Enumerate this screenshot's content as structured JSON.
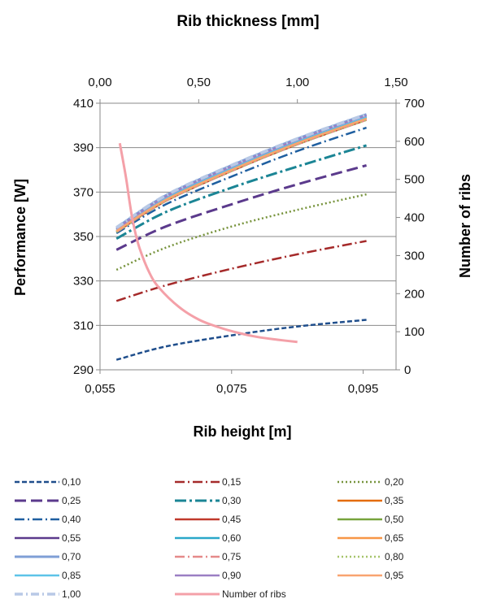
{
  "chart_data": {
    "type": "line",
    "title": "Rib thickness [mm]",
    "xlabel": "Rib height  [m]",
    "ylabel": "Performance  [W]",
    "y2label": "Number of ribs",
    "x_range": [
      0.055,
      0.1
    ],
    "x_ticks": [
      "0,055",
      "0,075",
      "0,095"
    ],
    "x_tick_values": [
      0.055,
      0.075,
      0.095
    ],
    "x2_range": [
      0.0,
      1.5
    ],
    "x2_ticks": [
      "0,00",
      "0,50",
      "1,00",
      "1,50"
    ],
    "x2_tick_values": [
      0.0,
      0.5,
      1.0,
      1.5
    ],
    "y_range": [
      290,
      410
    ],
    "y_ticks": [
      "290",
      "310",
      "330",
      "350",
      "370",
      "390",
      "410"
    ],
    "y_tick_values": [
      290,
      310,
      330,
      350,
      370,
      390,
      410
    ],
    "y2_range": [
      0,
      700
    ],
    "y2_ticks": [
      "0",
      "100",
      "200",
      "300",
      "400",
      "500",
      "600",
      "700"
    ],
    "y2_tick_values": [
      0,
      100,
      200,
      300,
      400,
      500,
      600,
      700
    ],
    "grid": "horizontal",
    "legend_position": "bottom",
    "series": [
      {
        "name": "0,10",
        "color": "#1f4e8c",
        "dash": "6,3",
        "width": 2.5,
        "axis": "left",
        "points": [
          [
            0.0575,
            294.5
          ],
          [
            0.065,
            300.5
          ],
          [
            0.075,
            305.5
          ],
          [
            0.085,
            309.5
          ],
          [
            0.0955,
            312.5
          ]
        ]
      },
      {
        "name": "0,15",
        "color": "#a52a2a",
        "dash": "12,4,2,4",
        "width": 2.5,
        "axis": "left",
        "points": [
          [
            0.0575,
            321.0
          ],
          [
            0.065,
            328.0
          ],
          [
            0.075,
            335.5
          ],
          [
            0.085,
            342.0
          ],
          [
            0.0955,
            348.0
          ]
        ]
      },
      {
        "name": "0,20",
        "color": "#77933c",
        "dash": "2,3",
        "width": 2.5,
        "axis": "left",
        "points": [
          [
            0.0575,
            335.0
          ],
          [
            0.065,
            345.0
          ],
          [
            0.075,
            354.5
          ],
          [
            0.085,
            362.0
          ],
          [
            0.0955,
            369.0
          ]
        ]
      },
      {
        "name": "0,25",
        "color": "#5b3a8c",
        "dash": "14,6",
        "width": 3,
        "axis": "left",
        "points": [
          [
            0.0575,
            344.0
          ],
          [
            0.065,
            354.5
          ],
          [
            0.075,
            364.5
          ],
          [
            0.085,
            373.5
          ],
          [
            0.0955,
            382.0
          ]
        ]
      },
      {
        "name": "0,30",
        "color": "#1b8595",
        "dash": "14,4,3,4",
        "width": 3,
        "axis": "left",
        "points": [
          [
            0.0575,
            349.0
          ],
          [
            0.065,
            361.0
          ],
          [
            0.075,
            372.0
          ],
          [
            0.085,
            381.5
          ],
          [
            0.0955,
            391.0
          ]
        ]
      },
      {
        "name": "0,35",
        "color": "#e46c0a",
        "dash": "",
        "width": 2.5,
        "axis": "left",
        "points": [
          [
            0.0575,
            352.0
          ],
          [
            0.065,
            366.5
          ],
          [
            0.075,
            380.0
          ],
          [
            0.085,
            392.0
          ],
          [
            0.0955,
            403.0
          ]
        ]
      },
      {
        "name": "0,40",
        "color": "#1f5fa0",
        "dash": "12,4,2,4",
        "width": 2.5,
        "axis": "left",
        "points": [
          [
            0.0575,
            351.5
          ],
          [
            0.065,
            364.5
          ],
          [
            0.075,
            377.0
          ],
          [
            0.085,
            388.5
          ],
          [
            0.0955,
            399.0
          ]
        ]
      },
      {
        "name": "0,45",
        "color": "#c0392b",
        "dash": "",
        "width": 2.5,
        "axis": "left",
        "points": [
          [
            0.0575,
            352.0
          ],
          [
            0.065,
            366.0
          ],
          [
            0.075,
            379.5
          ],
          [
            0.085,
            391.5
          ],
          [
            0.0955,
            402.5
          ]
        ]
      },
      {
        "name": "0,50",
        "color": "#77a33c",
        "dash": "",
        "width": 2.5,
        "axis": "left",
        "points": [
          [
            0.0575,
            352.5
          ],
          [
            0.065,
            367.0
          ],
          [
            0.075,
            380.5
          ],
          [
            0.085,
            392.5
          ],
          [
            0.0955,
            403.5
          ]
        ]
      },
      {
        "name": "0,55",
        "color": "#5b3a8c",
        "dash": "",
        "width": 2.5,
        "axis": "left",
        "points": [
          [
            0.0575,
            353.0
          ],
          [
            0.065,
            367.5
          ],
          [
            0.075,
            381.0
          ],
          [
            0.085,
            393.0
          ],
          [
            0.0955,
            404.0
          ]
        ]
      },
      {
        "name": "0,60",
        "color": "#2aa7c9",
        "dash": "",
        "width": 2.5,
        "axis": "left",
        "points": [
          [
            0.0575,
            353.5
          ],
          [
            0.065,
            368.0
          ],
          [
            0.075,
            381.5
          ],
          [
            0.085,
            393.5
          ],
          [
            0.0955,
            404.5
          ]
        ]
      },
      {
        "name": "0,65",
        "color": "#f79646",
        "dash": "",
        "width": 2.5,
        "axis": "left",
        "points": [
          [
            0.0575,
            352.5
          ],
          [
            0.065,
            366.5
          ],
          [
            0.075,
            380.0
          ],
          [
            0.085,
            392.0
          ],
          [
            0.0955,
            403.0
          ]
        ]
      },
      {
        "name": "0,70",
        "color": "#7f9fd6",
        "dash": "",
        "width": 3,
        "axis": "left",
        "points": [
          [
            0.0575,
            354.0
          ],
          [
            0.065,
            368.5
          ],
          [
            0.075,
            382.0
          ],
          [
            0.085,
            394.0
          ],
          [
            0.0955,
            405.0
          ]
        ]
      },
      {
        "name": "0,75",
        "color": "#e58a8a",
        "dash": "12,4,2,4",
        "width": 2.5,
        "axis": "left",
        "points": [
          [
            0.0575,
            352.0
          ],
          [
            0.065,
            366.0
          ],
          [
            0.075,
            379.5
          ],
          [
            0.085,
            391.5
          ],
          [
            0.0955,
            402.5
          ]
        ]
      },
      {
        "name": "0,80",
        "color": "#a6c46a",
        "dash": "2,3",
        "width": 2.5,
        "axis": "left",
        "points": [
          [
            0.0575,
            352.0
          ],
          [
            0.065,
            366.0
          ],
          [
            0.075,
            379.5
          ],
          [
            0.085,
            391.5
          ],
          [
            0.0955,
            402.5
          ]
        ]
      },
      {
        "name": "0,85",
        "color": "#5dc4e8",
        "dash": "",
        "width": 2.5,
        "axis": "left",
        "points": [
          [
            0.0575,
            353.0
          ],
          [
            0.065,
            367.5
          ],
          [
            0.075,
            381.0
          ],
          [
            0.085,
            393.0
          ],
          [
            0.0955,
            404.0
          ]
        ]
      },
      {
        "name": "0,90",
        "color": "#9b7fc4",
        "dash": "",
        "width": 2.5,
        "axis": "left",
        "points": [
          [
            0.0575,
            353.5
          ],
          [
            0.065,
            368.0
          ],
          [
            0.075,
            381.5
          ],
          [
            0.085,
            393.5
          ],
          [
            0.0955,
            404.5
          ]
        ]
      },
      {
        "name": "0,95",
        "color": "#f9a470",
        "dash": "",
        "width": 2.5,
        "axis": "left",
        "points": [
          [
            0.0575,
            352.5
          ],
          [
            0.065,
            366.5
          ],
          [
            0.075,
            380.0
          ],
          [
            0.085,
            392.0
          ],
          [
            0.0955,
            403.0
          ]
        ]
      },
      {
        "name": "1,00",
        "color": "#b8c9e6",
        "dash": "10,4,2,4",
        "width": 4,
        "axis": "left",
        "points": [
          [
            0.0575,
            354.0
          ],
          [
            0.065,
            368.5
          ],
          [
            0.075,
            382.0
          ],
          [
            0.085,
            394.0
          ],
          [
            0.0955,
            405.0
          ]
        ]
      },
      {
        "name": "Number of ribs",
        "color": "#f4a0a8",
        "dash": "",
        "width": 3,
        "axis": "right_top",
        "points": [
          [
            0.1,
            595
          ],
          [
            0.13,
            510
          ],
          [
            0.15,
            440
          ],
          [
            0.17,
            380
          ],
          [
            0.2,
            320
          ],
          [
            0.25,
            255
          ],
          [
            0.3,
            215
          ],
          [
            0.4,
            165
          ],
          [
            0.5,
            132
          ],
          [
            0.6,
            112
          ],
          [
            0.7,
            97
          ],
          [
            0.8,
            86
          ],
          [
            0.9,
            79
          ],
          [
            1.0,
            73
          ]
        ]
      }
    ]
  }
}
